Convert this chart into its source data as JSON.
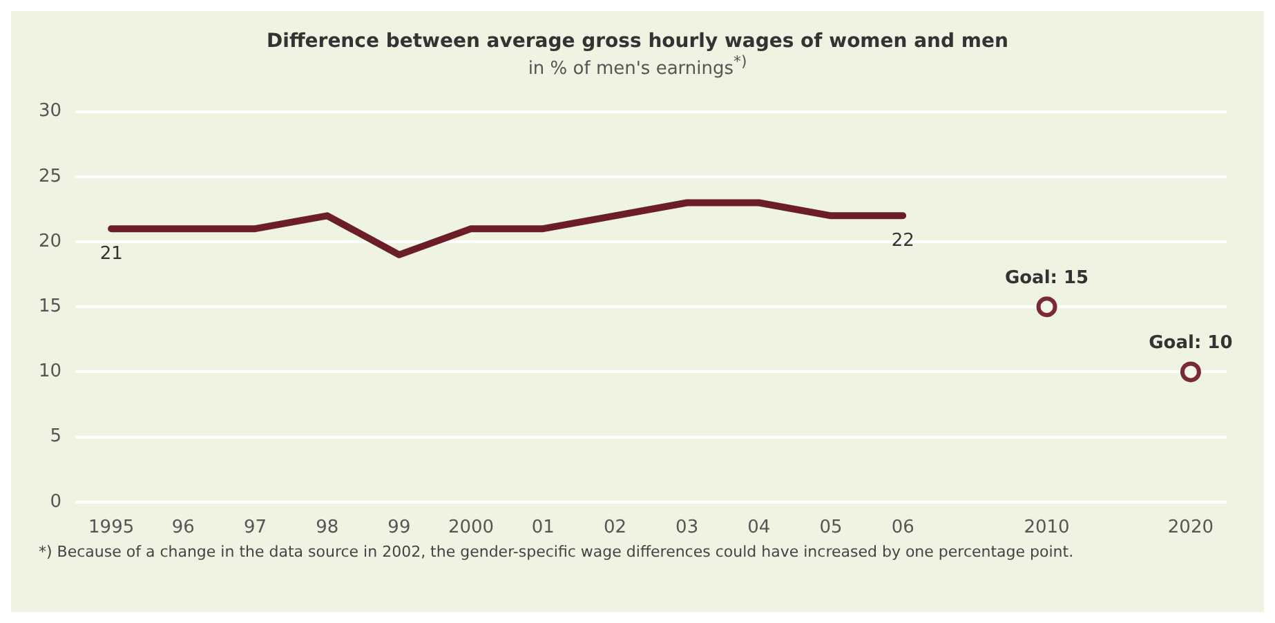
{
  "chart_data": {
    "type": "line",
    "title": "Difference between average gross hourly wages of women and men",
    "subtitle": "in % of men's earnings$^{*)}$",
    "categories": [
      "1995",
      "96",
      "97",
      "98",
      "99",
      "2000",
      "01",
      "02",
      "03",
      "04",
      "05",
      "06",
      null,
      "2010",
      null,
      "2020"
    ],
    "series": [
      {
        "color": "#6b1e26",
        "marker": "none",
        "values": [
          21,
          21,
          21,
          22,
          19,
          21,
          21,
          22,
          23,
          23,
          22,
          22,
          null,
          null,
          null,
          null
        ],
        "value_labels": [
          "21",
          null,
          null,
          null,
          null,
          null,
          null,
          null,
          null,
          null,
          null,
          "22",
          null,
          null,
          null,
          null
        ]
      },
      {
        "type": "scatter",
        "color": "#7a2a32",
        "marker": "circle",
        "values": [
          null,
          null,
          null,
          null,
          null,
          null,
          null,
          null,
          null,
          null,
          null,
          null,
          null,
          15,
          null,
          10
        ],
        "value_labels": [
          null,
          null,
          null,
          null,
          null,
          null,
          null,
          null,
          null,
          null,
          null,
          null,
          null,
          "Goal: 15",
          null,
          "Goal: 10"
        ]
      }
    ],
    "ylim": [
      0,
      30
    ],
    "yticks": [
      0,
      5,
      10,
      15,
      20,
      25,
      30
    ],
    "grid": "y",
    "legend": false,
    "annotations": [
      "*) Because of a change in the data source in 2002, the gender-specific wage differences could have increased by one percentage point."
    ]
  }
}
